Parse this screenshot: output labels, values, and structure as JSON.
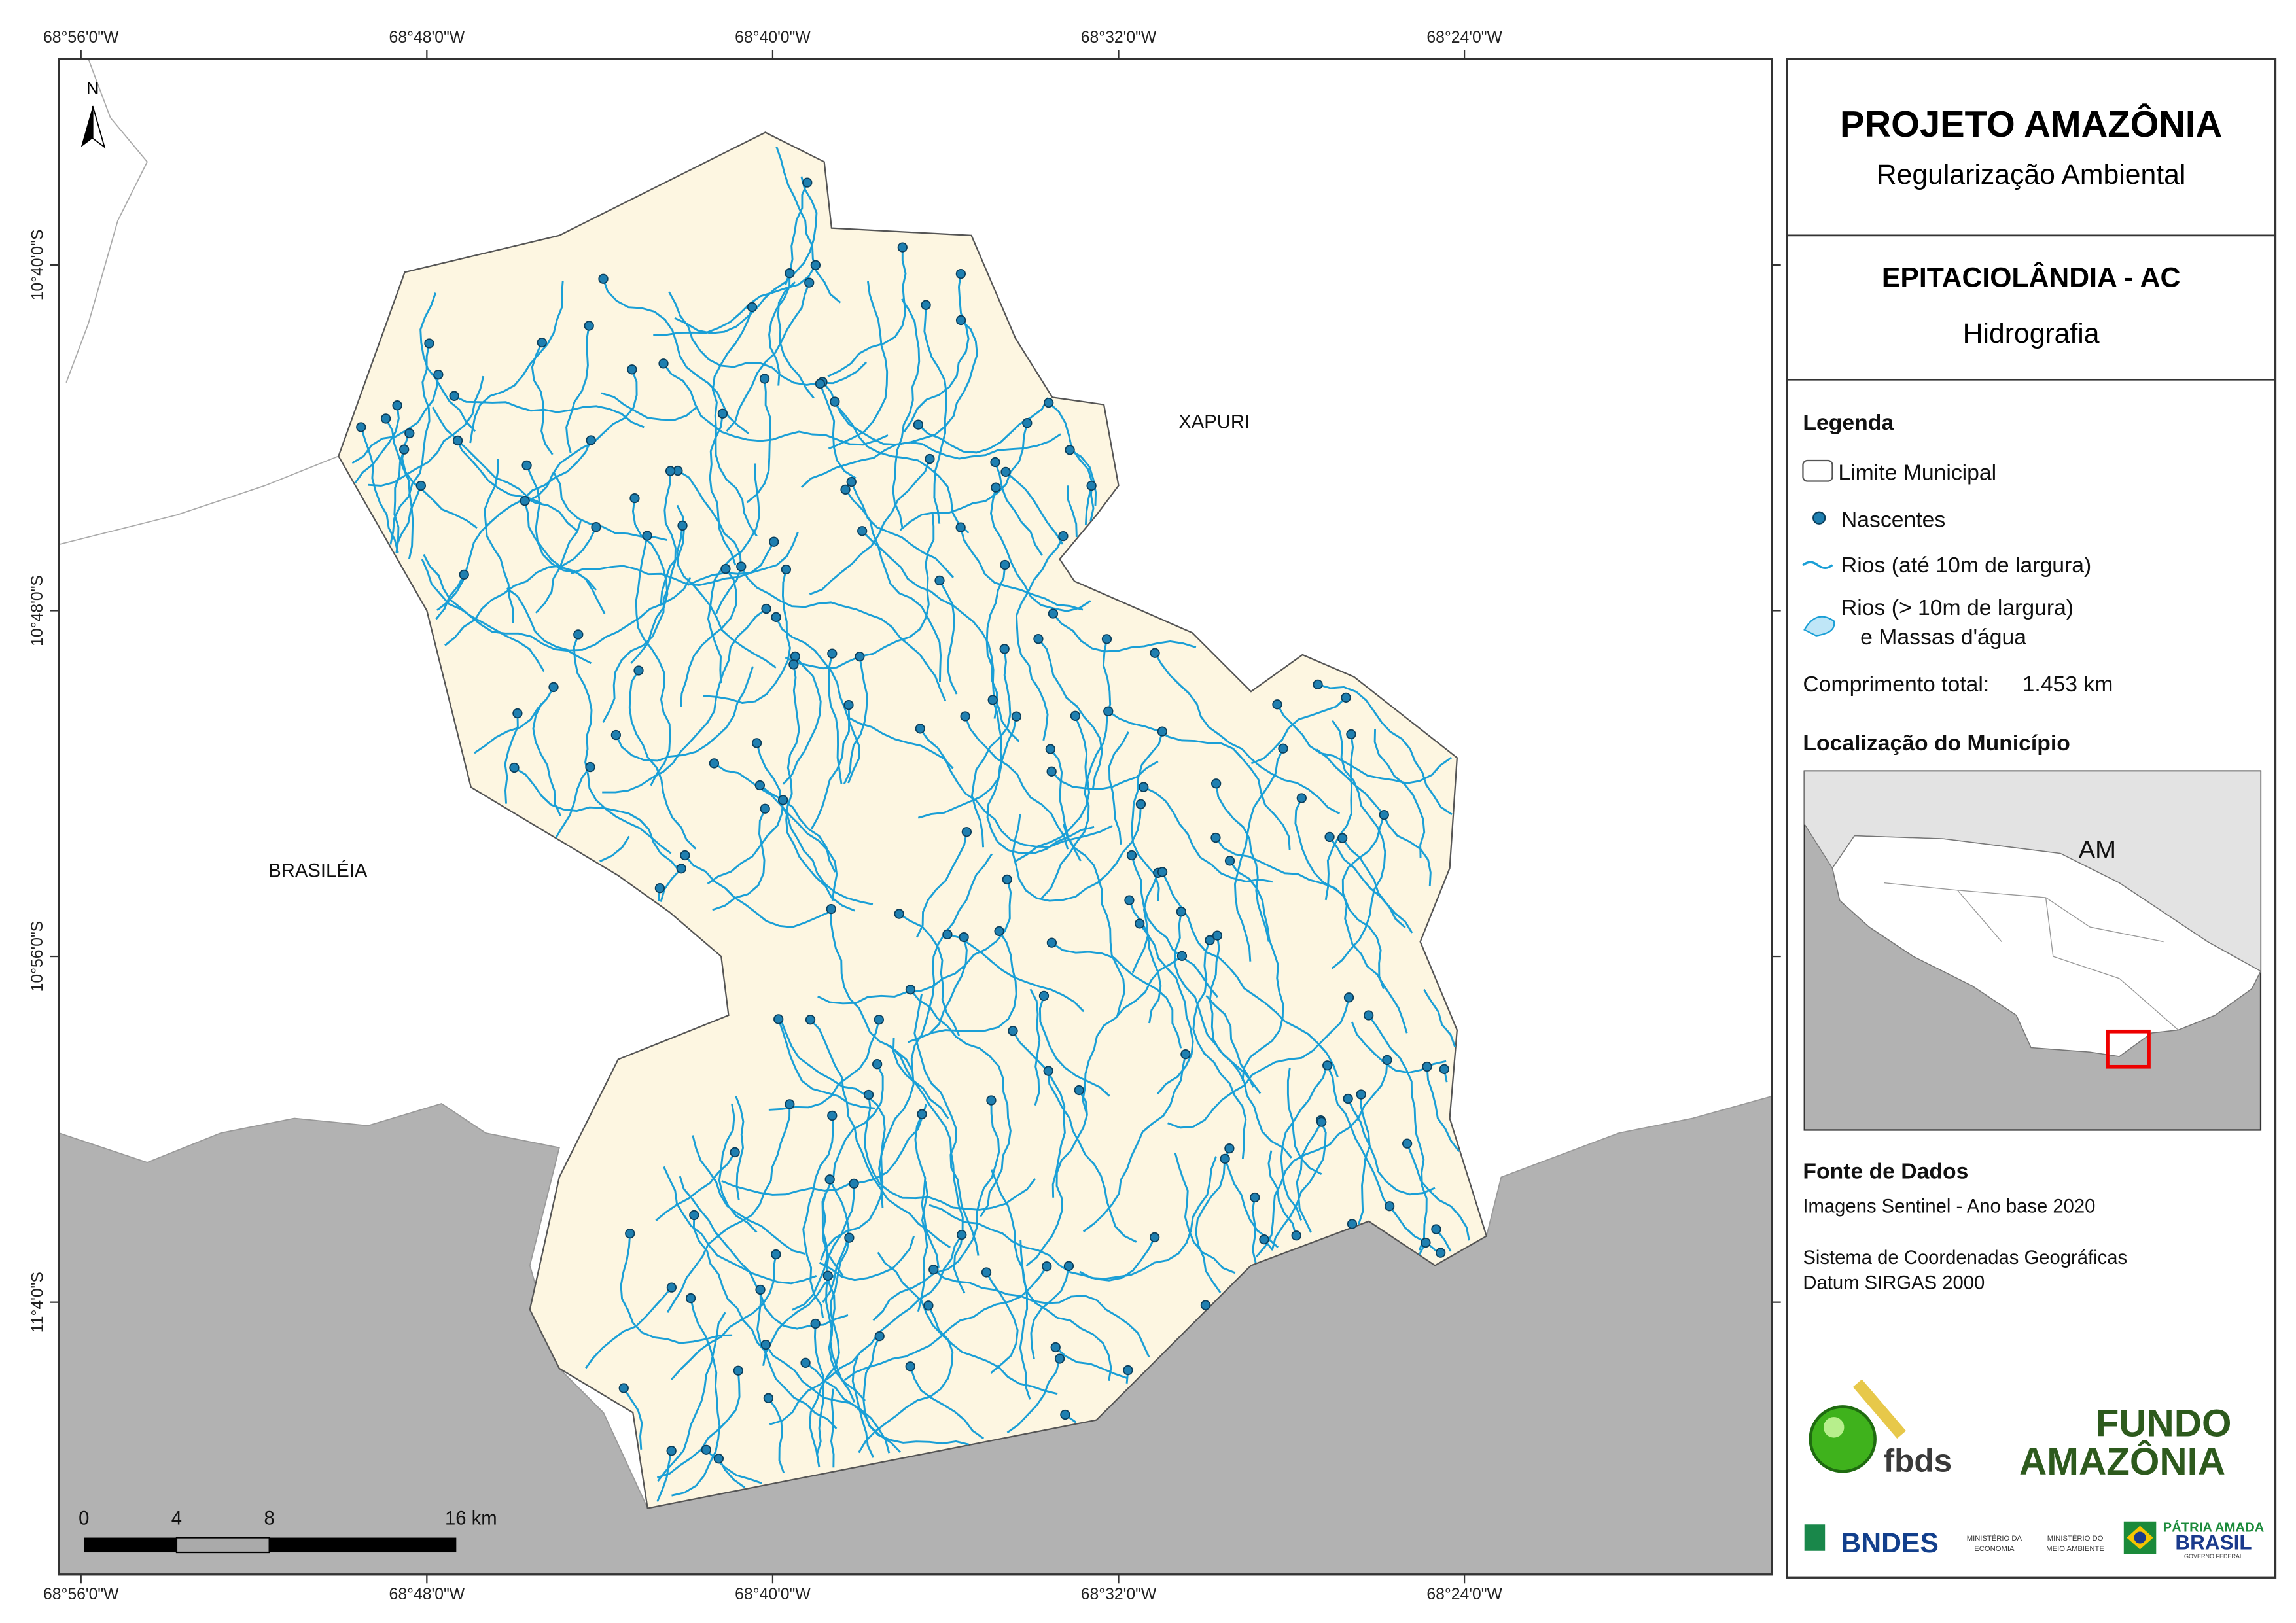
{
  "graticule": {
    "longitudes": [
      "68°56'0\"W",
      "68°48'0\"W",
      "68°40'0\"W",
      "68°32'0\"W",
      "68°24'0\"W"
    ],
    "latitudes": [
      "10°40'0\"S",
      "10°48'0\"S",
      "10°56'0\"S",
      "11°4'0\"S"
    ]
  },
  "north_arrow": "N",
  "places": [
    "XAPURI",
    "BRASILÉIA"
  ],
  "scale_bar": {
    "labels": [
      "0",
      "4",
      "8",
      "16 km"
    ]
  },
  "header": {
    "title": "PROJETO AMAZÔNIA",
    "subtitle": "Regularização Ambiental"
  },
  "map_info": {
    "municipality": "EPITACIOLÂNDIA - AC",
    "theme": "Hidrografia"
  },
  "legend": {
    "title": "Legenda",
    "items": [
      "Limite Municipal",
      "Nascentes",
      "Rios (até 10m de largura)",
      "Rios (> 10m de largura)",
      "e Massas d'água"
    ],
    "total_label": "Comprimento total:",
    "total_value": "1.453 km"
  },
  "location": {
    "title": "Localização do Município",
    "state_label": "AM"
  },
  "sources": {
    "title": "Fonte de Dados",
    "lines": [
      "Imagens Sentinel - Ano base 2020",
      "Sistema de Coordenadas Geográficas",
      "Datum SIRGAS 2000"
    ]
  },
  "logos": {
    "fbds": "fbds",
    "fundo_1": "FUNDO",
    "fundo_2": "AMAZÔNIA",
    "bndes": "BNDES",
    "min_economia_1": "MINISTÉRIO DA",
    "min_economia_2": "ECONOMIA",
    "min_ambiente_1": "MINISTÉRIO DO",
    "min_ambiente_2": "MEIO AMBIENTE",
    "brasil_1": "PÁTRIA AMADA",
    "brasil_2": "BRASIL",
    "brasil_3": "GOVERNO FEDERAL"
  }
}
